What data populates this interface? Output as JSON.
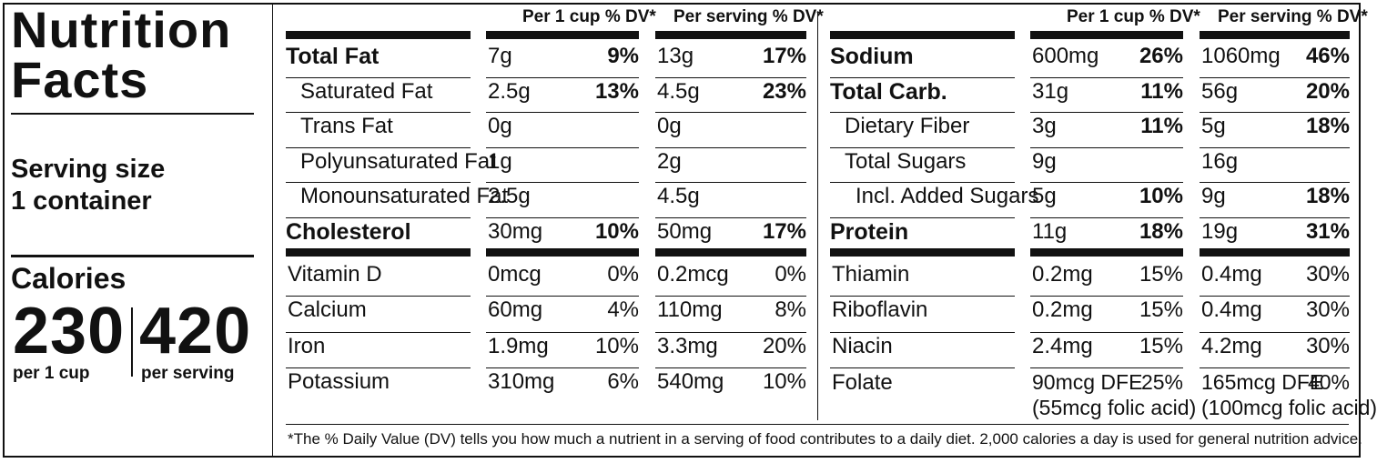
{
  "title": "Nutrition Facts",
  "serving": {
    "line1": "Serving size",
    "line2": "1 container"
  },
  "calories": {
    "label": "Calories",
    "cup_value": "230",
    "cup_label": "per 1 cup",
    "serving_value": "420",
    "serving_label": "per serving"
  },
  "headers": {
    "per_cup": "Per 1 cup % DV*",
    "per_serving": "Per serving % DV*"
  },
  "left_rows": [
    {
      "name": "Total Fat",
      "bold": true,
      "cup_amt": "7g",
      "cup_pct": "9%",
      "srv_amt": "13g",
      "srv_pct": "17%"
    },
    {
      "name": "Saturated Fat",
      "bold": false,
      "cup_amt": "2.5g",
      "cup_pct": "13%",
      "srv_amt": "4.5g",
      "srv_pct": "23%"
    },
    {
      "name": "Trans Fat",
      "bold": false,
      "cup_amt": "0g",
      "cup_pct": "",
      "srv_amt": "0g",
      "srv_pct": ""
    },
    {
      "name": "Polyunsaturated Fat",
      "bold": false,
      "cup_amt": "1g",
      "cup_pct": "",
      "srv_amt": "2g",
      "srv_pct": ""
    },
    {
      "name": "Monounsaturated Fat",
      "bold": false,
      "cup_amt": "2.5g",
      "cup_pct": "",
      "srv_amt": "4.5g",
      "srv_pct": ""
    },
    {
      "name": "Cholesterol",
      "bold": true,
      "cup_amt": "30mg",
      "cup_pct": "10%",
      "srv_amt": "50mg",
      "srv_pct": "17%"
    }
  ],
  "left_vitamins": [
    {
      "name": "Vitamin D",
      "cup_amt": "0mcg",
      "cup_pct": "0%",
      "srv_amt": "0.2mcg",
      "srv_pct": "0%"
    },
    {
      "name": "Calcium",
      "cup_amt": "60mg",
      "cup_pct": "4%",
      "srv_amt": "110mg",
      "srv_pct": "8%"
    },
    {
      "name": "Iron",
      "cup_amt": "1.9mg",
      "cup_pct": "10%",
      "srv_amt": "3.3mg",
      "srv_pct": "20%"
    },
    {
      "name": "Potassium",
      "cup_amt": "310mg",
      "cup_pct": "6%",
      "srv_amt": "540mg",
      "srv_pct": "10%"
    }
  ],
  "right_rows": [
    {
      "name": "Sodium",
      "bold": true,
      "cup_amt": "600mg",
      "cup_pct": "26%",
      "srv_amt": "1060mg",
      "srv_pct": "46%"
    },
    {
      "name": "Total Carb.",
      "bold": true,
      "cup_amt": "31g",
      "cup_pct": "11%",
      "srv_amt": "56g",
      "srv_pct": "20%"
    },
    {
      "name": "Dietary Fiber",
      "bold": false,
      "cup_amt": "3g",
      "cup_pct": "11%",
      "srv_amt": "5g",
      "srv_pct": "18%"
    },
    {
      "name": "Total Sugars",
      "bold": false,
      "cup_amt": "9g",
      "cup_pct": "",
      "srv_amt": "16g",
      "srv_pct": ""
    },
    {
      "name": "Incl. Added Sugars",
      "bold": false,
      "cup_amt": "5g",
      "cup_pct": "10%",
      "srv_amt": "9g",
      "srv_pct": "18%"
    },
    {
      "name": "Protein",
      "bold": true,
      "cup_amt": "11g",
      "cup_pct": "18%",
      "srv_amt": "19g",
      "srv_pct": "31%"
    }
  ],
  "right_vitamins": [
    {
      "name": "Thiamin",
      "cup_amt": "0.2mg",
      "cup_pct": "15%",
      "srv_amt": "0.4mg",
      "srv_pct": "30%"
    },
    {
      "name": "Riboflavin",
      "cup_amt": "0.2mg",
      "cup_pct": "15%",
      "srv_amt": "0.4mg",
      "srv_pct": "30%"
    },
    {
      "name": "Niacin",
      "cup_amt": "2.4mg",
      "cup_pct": "15%",
      "srv_amt": "4.2mg",
      "srv_pct": "30%"
    }
  ],
  "folate": {
    "name": "Folate",
    "cup_amt": "90mcg DFE",
    "cup_pct": "25%",
    "cup_note": "(55mcg folic acid)",
    "srv_amt": "165mcg DFE",
    "srv_pct": "40%",
    "srv_note": "(100mcg folic acid)"
  },
  "footnote": "*The % Daily Value (DV) tells you how much a nutrient in a serving of food contributes to a daily diet. 2,000 calories a day is used for general nutrition advice."
}
